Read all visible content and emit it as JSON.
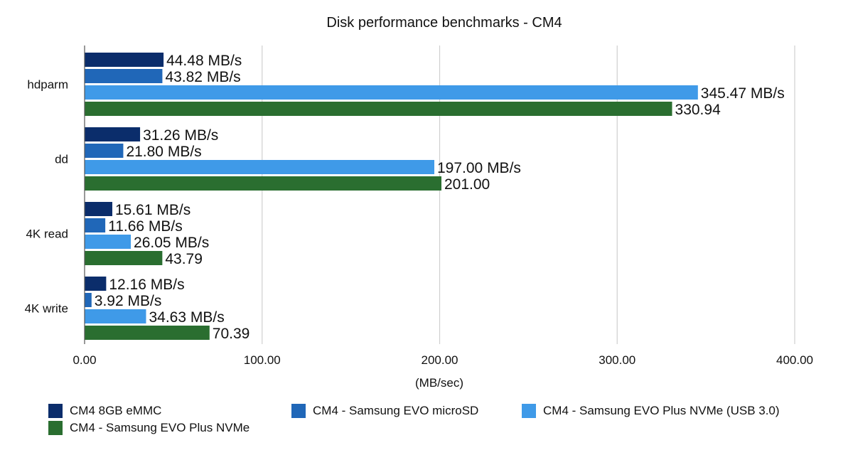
{
  "chart_data": {
    "type": "bar",
    "orientation": "horizontal",
    "title": "Disk performance benchmarks - CM4",
    "xlabel": "(MB/sec)",
    "ylabel": "",
    "xlim": [
      0,
      400
    ],
    "x_ticks": [
      "0.00",
      "100.00",
      "200.00",
      "300.00",
      "400.00"
    ],
    "grid": true,
    "legend_position": "bottom",
    "categories": [
      "hdparm",
      "dd",
      "4K read",
      "4K write"
    ],
    "series": [
      {
        "name": "CM4 8GB eMMC",
        "color": "#0b2d6b",
        "values": [
          44.48,
          31.26,
          15.61,
          12.16
        ],
        "labels": [
          "44.48 MB/s",
          "31.26 MB/s",
          "15.61 MB/s",
          "12.16 MB/s"
        ]
      },
      {
        "name": "CM4 - Samsung EVO microSD",
        "color": "#2067b8",
        "values": [
          43.82,
          21.8,
          11.66,
          3.92
        ],
        "labels": [
          "43.82 MB/s",
          "21.80 MB/s",
          "11.66 MB/s",
          "3.92 MB/s"
        ]
      },
      {
        "name": "CM4 - Samsung EVO Plus NVMe (USB 3.0)",
        "color": "#3f9ae8",
        "values": [
          345.47,
          197.0,
          26.05,
          34.63
        ],
        "labels": [
          "345.47 MB/s",
          "197.00 MB/s",
          "26.05 MB/s",
          "34.63 MB/s"
        ]
      },
      {
        "name": "CM4 - Samsung EVO Plus NVMe",
        "color": "#2a6e30",
        "values": [
          330.94,
          201.0,
          43.79,
          70.39
        ],
        "labels": [
          "330.94",
          "201.00",
          "43.79",
          "70.39"
        ]
      }
    ]
  }
}
